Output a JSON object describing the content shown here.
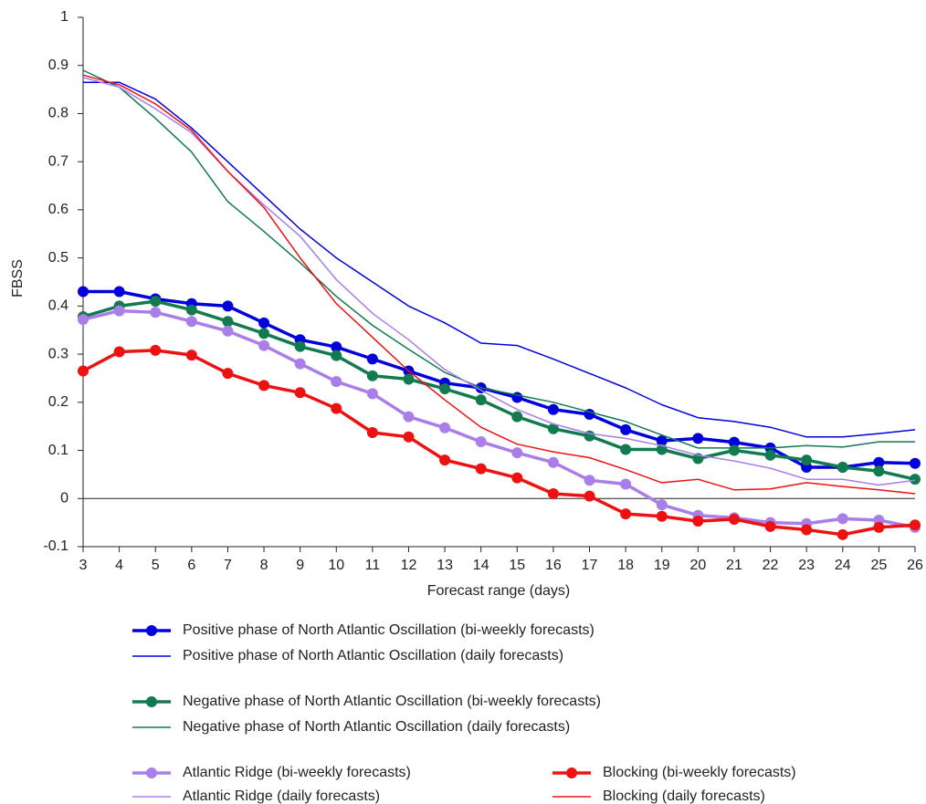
{
  "chart_data": {
    "type": "line",
    "x_label": "Forecast range (days)",
    "y_label": "FBSS",
    "x": [
      3,
      4,
      5,
      6,
      7,
      8,
      9,
      10,
      11,
      12,
      13,
      14,
      15,
      16,
      17,
      18,
      19,
      20,
      21,
      22,
      23,
      24,
      25,
      26
    ],
    "xlim": [
      3,
      26
    ],
    "xticks": [
      3,
      4,
      5,
      6,
      7,
      8,
      9,
      10,
      11,
      12,
      13,
      14,
      15,
      16,
      17,
      18,
      19,
      20,
      21,
      22,
      23,
      24,
      25,
      26
    ],
    "ylim": [
      -0.1,
      1
    ],
    "yticks": [
      -0.1,
      0,
      0.1,
      0.2,
      0.3,
      0.4,
      0.5,
      0.6,
      0.7,
      0.8,
      0.9,
      1
    ],
    "zero_line": true,
    "series": [
      {
        "name": "Positive phase of North Atlantic Oscillation (bi-weekly forecasts)",
        "color": "#0000dd",
        "markers": true,
        "values": [
          0.43,
          0.43,
          0.415,
          0.405,
          0.4,
          0.365,
          0.33,
          0.315,
          0.29,
          0.265,
          0.24,
          0.23,
          0.21,
          0.185,
          0.175,
          0.143,
          0.12,
          0.125,
          0.117,
          0.105,
          0.065,
          0.065,
          0.075,
          0.073
        ]
      },
      {
        "name": "Positive phase of North Atlantic Oscillation (daily forecasts)",
        "color": "#0000dd",
        "markers": false,
        "values": [
          0.865,
          0.865,
          0.83,
          0.77,
          0.7,
          0.63,
          0.56,
          0.5,
          0.45,
          0.4,
          0.365,
          0.323,
          0.318,
          0.29,
          0.26,
          0.23,
          0.195,
          0.168,
          0.16,
          0.148,
          0.128,
          0.128,
          0.135,
          0.143
        ]
      },
      {
        "name": "Negative phase of North Atlantic Oscillation (bi-weekly forecasts)",
        "color": "#127a4f",
        "markers": true,
        "values": [
          0.378,
          0.4,
          0.41,
          0.392,
          0.368,
          0.343,
          0.316,
          0.297,
          0.255,
          0.248,
          0.228,
          0.205,
          0.17,
          0.145,
          0.13,
          0.102,
          0.102,
          0.083,
          0.1,
          0.09,
          0.08,
          0.065,
          0.057,
          0.04
        ]
      },
      {
        "name": "Negative phase of North Atlantic Oscillation (daily forecasts)",
        "color": "#127a4f",
        "markers": false,
        "values": [
          0.89,
          0.855,
          0.79,
          0.72,
          0.617,
          0.555,
          0.49,
          0.42,
          0.36,
          0.31,
          0.262,
          0.23,
          0.215,
          0.2,
          0.18,
          0.16,
          0.132,
          0.105,
          0.105,
          0.105,
          0.11,
          0.107,
          0.118,
          0.118
        ]
      },
      {
        "name": "Atlantic Ridge (bi-weekly forecasts)",
        "color": "#a97ee8",
        "markers": true,
        "values": [
          0.372,
          0.39,
          0.387,
          0.368,
          0.348,
          0.318,
          0.28,
          0.243,
          0.218,
          0.17,
          0.147,
          0.118,
          0.095,
          0.075,
          0.038,
          0.03,
          -0.013,
          -0.035,
          -0.04,
          -0.05,
          -0.052,
          -0.042,
          -0.045,
          -0.06
        ]
      },
      {
        "name": "Atlantic Ridge (daily forecasts)",
        "color": "#a97ee8",
        "markers": false,
        "values": [
          0.875,
          0.855,
          0.81,
          0.76,
          0.68,
          0.61,
          0.545,
          0.455,
          0.385,
          0.33,
          0.268,
          0.225,
          0.185,
          0.155,
          0.135,
          0.125,
          0.11,
          0.09,
          0.078,
          0.063,
          0.04,
          0.04,
          0.028,
          0.038
        ]
      },
      {
        "name": "Blocking (bi-weekly forecasts)",
        "color": "#ee1111",
        "markers": true,
        "values": [
          0.265,
          0.305,
          0.308,
          0.298,
          0.26,
          0.235,
          0.22,
          0.187,
          0.137,
          0.128,
          0.08,
          0.062,
          0.043,
          0.01,
          0.005,
          -0.032,
          -0.037,
          -0.047,
          -0.043,
          -0.058,
          -0.065,
          -0.075,
          -0.06,
          -0.055
        ]
      },
      {
        "name": "Blocking (daily forecasts)",
        "color": "#ee1111",
        "markers": false,
        "values": [
          0.88,
          0.86,
          0.82,
          0.765,
          0.68,
          0.605,
          0.5,
          0.405,
          0.335,
          0.265,
          0.205,
          0.148,
          0.113,
          0.097,
          0.085,
          0.06,
          0.033,
          0.04,
          0.018,
          0.02,
          0.033,
          0.025,
          0.018,
          0.01
        ]
      }
    ]
  }
}
